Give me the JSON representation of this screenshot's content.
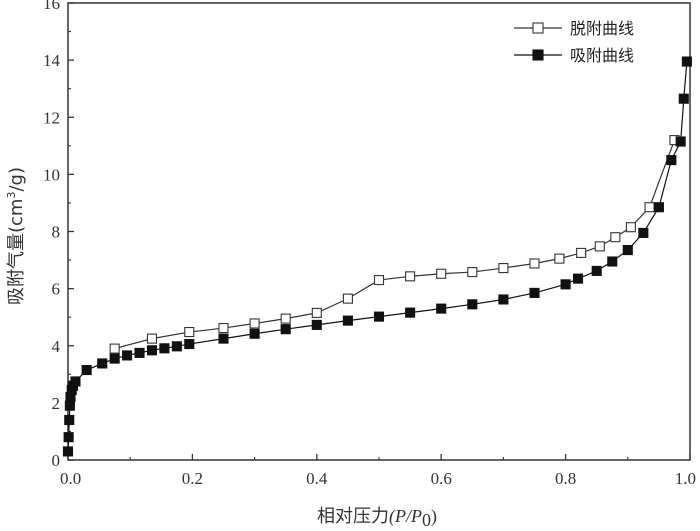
{
  "chart_data": {
    "type": "line",
    "xlabel_cjk": "相对压力",
    "xlabel_math": "(P/P",
    "xlabel_sub": "0",
    "xlabel_close": ")",
    "ylabel_main": "吸附气量(cm",
    "ylabel_sup": "3",
    "ylabel_tail": "/g)",
    "xlim": [
      0.0,
      1.0
    ],
    "ylim": [
      0,
      16
    ],
    "xticks": [
      0.0,
      0.2,
      0.4,
      0.6,
      0.8,
      1.0
    ],
    "xtick_labels": [
      "0.0",
      "0.2",
      "0.4",
      "0.6",
      "0.8",
      "1.0"
    ],
    "yticks": [
      0,
      2,
      4,
      6,
      8,
      10,
      12,
      14,
      16
    ],
    "ytick_labels": [
      "0",
      "2",
      "4",
      "6",
      "8",
      "10",
      "12",
      "14",
      "16"
    ],
    "legend_position": "top-right",
    "series": [
      {
        "name": "脱附曲线",
        "marker": "open-square",
        "color": "#333333",
        "x": [
          0.075,
          0.135,
          0.195,
          0.25,
          0.3,
          0.35,
          0.4,
          0.45,
          0.5,
          0.55,
          0.6,
          0.65,
          0.7,
          0.75,
          0.79,
          0.825,
          0.855,
          0.88,
          0.905,
          0.935,
          0.975
        ],
        "y": [
          3.9,
          4.25,
          4.48,
          4.62,
          4.78,
          4.95,
          5.15,
          5.65,
          6.3,
          6.43,
          6.52,
          6.58,
          6.72,
          6.88,
          7.05,
          7.25,
          7.48,
          7.8,
          8.15,
          8.85,
          11.2
        ]
      },
      {
        "name": "吸附曲线",
        "marker": "filled-square",
        "color": "#111111",
        "x": [
          0.0,
          0.001,
          0.002,
          0.003,
          0.004,
          0.006,
          0.008,
          0.012,
          0.03,
          0.055,
          0.075,
          0.095,
          0.115,
          0.135,
          0.155,
          0.175,
          0.195,
          0.25,
          0.3,
          0.35,
          0.4,
          0.45,
          0.5,
          0.55,
          0.6,
          0.65,
          0.7,
          0.75,
          0.8,
          0.82,
          0.85,
          0.875,
          0.9,
          0.925,
          0.95,
          0.97,
          0.985,
          0.99,
          0.995
        ],
        "y": [
          0.3,
          0.8,
          1.4,
          1.9,
          2.2,
          2.45,
          2.6,
          2.75,
          3.15,
          3.38,
          3.55,
          3.66,
          3.75,
          3.84,
          3.91,
          3.98,
          4.06,
          4.25,
          4.42,
          4.58,
          4.73,
          4.88,
          5.02,
          5.16,
          5.3,
          5.45,
          5.62,
          5.85,
          6.15,
          6.35,
          6.62,
          6.95,
          7.35,
          7.95,
          8.85,
          10.5,
          11.15,
          12.65,
          13.95
        ]
      }
    ]
  }
}
